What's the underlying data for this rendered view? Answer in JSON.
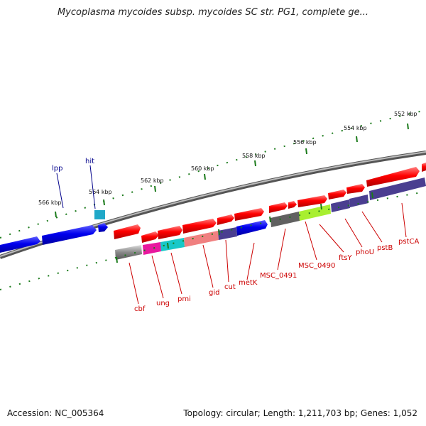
{
  "title": "Mycoplasma mycoides subsp. mycoides SC str. PG1, complete ge...",
  "footer": {
    "accession": "Accession: NC_005364",
    "summary": "Topology: circular; Length: 1,211,703 bp; Genes: 1,052"
  },
  "scale_labels": [
    "552 kbp",
    "554 kbp",
    "556 kbp",
    "558 kbp",
    "560 kbp",
    "562 kbp",
    "564 kbp",
    "566 kbp"
  ],
  "gene_labels_red": [
    "cbf",
    "ung",
    "pmi",
    "gid",
    "cut",
    "metK",
    "MSC_0491",
    "MSC_0490",
    "ftsY",
    "phoU",
    "pstB",
    "pstCA"
  ],
  "gene_labels_blue": [
    "lpp",
    "hit"
  ],
  "colors": {
    "forward_gene": "#ff0000",
    "reverse_gene": "#0000ff",
    "backbone": "#888888",
    "tick": "#1a7a1a",
    "label_red": "#cc0000",
    "label_blue": "#00008b"
  }
}
